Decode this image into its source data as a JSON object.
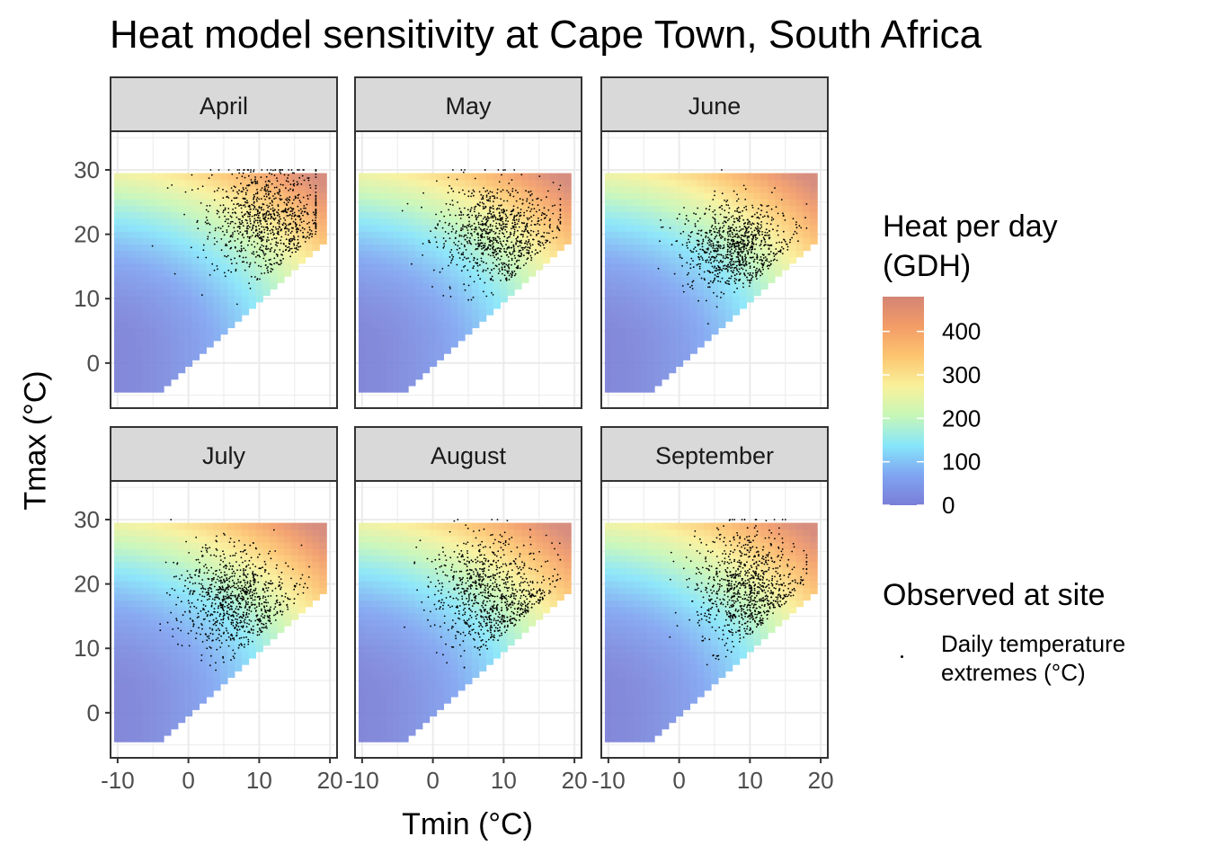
{
  "title": "Heat model sensitivity at Cape Town, South Africa",
  "chart_data": {
    "type": "heatmap",
    "title": "Heat model sensitivity at Cape Town, South Africa",
    "xlabel": "Tmin (°C)",
    "ylabel": "Tmax (°C)",
    "xlim": [
      -11,
      21
    ],
    "ylim": [
      -7,
      36
    ],
    "xticks": [
      "-10",
      "0",
      "10",
      "20"
    ],
    "yticks": [
      "0",
      "10",
      "20",
      "30"
    ],
    "grid": true,
    "panels": [
      {
        "label": "April",
        "obs_center": [
          11,
          22
        ],
        "obs_spread": [
          4,
          4.5
        ]
      },
      {
        "label": "May",
        "obs_center": [
          9,
          20
        ],
        "obs_spread": [
          4,
          4
        ]
      },
      {
        "label": "June",
        "obs_center": [
          8,
          18
        ],
        "obs_spread": [
          3.5,
          3.5
        ]
      },
      {
        "label": "July",
        "obs_center": [
          6.5,
          17.5
        ],
        "obs_spread": [
          3.8,
          4
        ]
      },
      {
        "label": "August",
        "obs_center": [
          8,
          18.5
        ],
        "obs_spread": [
          4,
          4.5
        ]
      },
      {
        "label": "September",
        "obs_center": [
          9.5,
          19.5
        ],
        "obs_spread": [
          3.5,
          4.5
        ]
      }
    ],
    "heat_grid": {
      "tmin_range": [
        -10,
        19
      ],
      "tmax_range": [
        -4,
        29
      ],
      "constraint": "tmax >= tmin"
    },
    "legend": {
      "fill": {
        "title": "Heat per day (GDH)",
        "title_lines": [
          "Heat per day",
          "(GDH)"
        ],
        "ticks": [
          "0",
          "100",
          "200",
          "300",
          "400"
        ],
        "range": [
          0,
          480
        ],
        "colors": [
          "#7a7ed6",
          "#7fa4f2",
          "#86e6fa",
          "#c6f7b8",
          "#f9f19a",
          "#fdc570",
          "#f39c67",
          "#d48575"
        ]
      },
      "points": {
        "title": "Observed at site",
        "label": "Daily temperature extremes (°C)",
        "label_lines": [
          "Daily temperature",
          "extremes (°C)"
        ]
      }
    }
  }
}
